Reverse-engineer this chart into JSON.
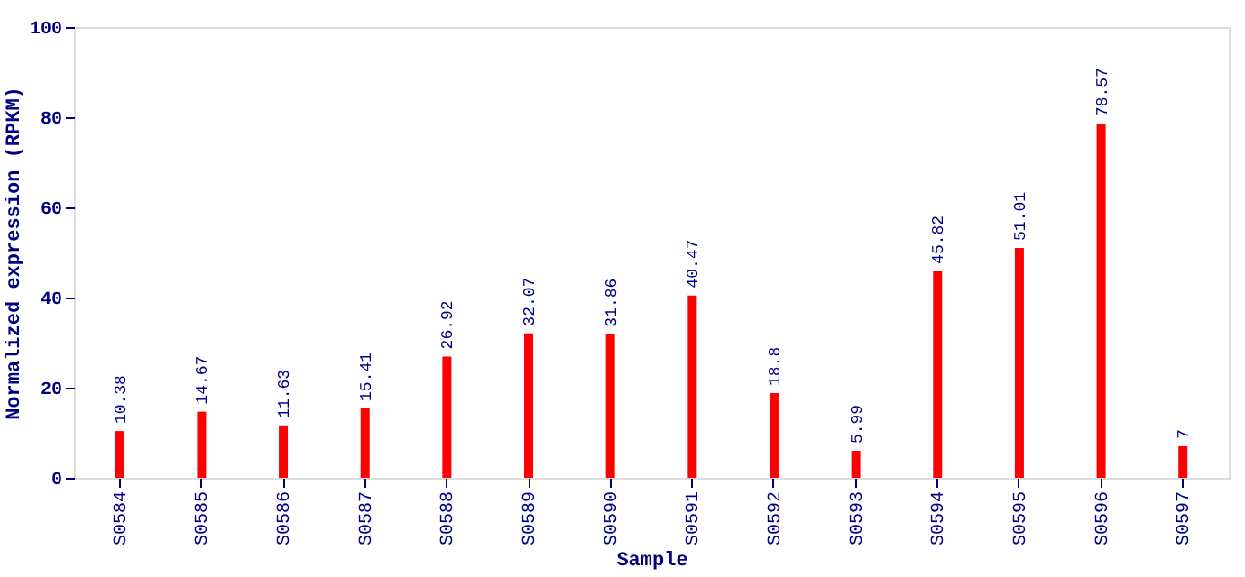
{
  "chart_data": {
    "type": "bar",
    "xlabel": "Sample",
    "ylabel": "Normalized expression (RPKM)",
    "categories": [
      "S0584",
      "S0585",
      "S0586",
      "S0587",
      "S0588",
      "S0589",
      "S0590",
      "S0591",
      "S0592",
      "S0593",
      "S0594",
      "S0595",
      "S0596",
      "S0597"
    ],
    "values": [
      10.38,
      14.67,
      11.63,
      15.41,
      26.92,
      32.07,
      31.86,
      40.47,
      18.8,
      5.99,
      45.82,
      51.01,
      78.57,
      7
    ],
    "color": "#ff0000",
    "ylim": [
      0,
      100
    ],
    "yticks": [
      0,
      20,
      40,
      60,
      80,
      100
    ],
    "grid": false,
    "data_labels": true
  }
}
